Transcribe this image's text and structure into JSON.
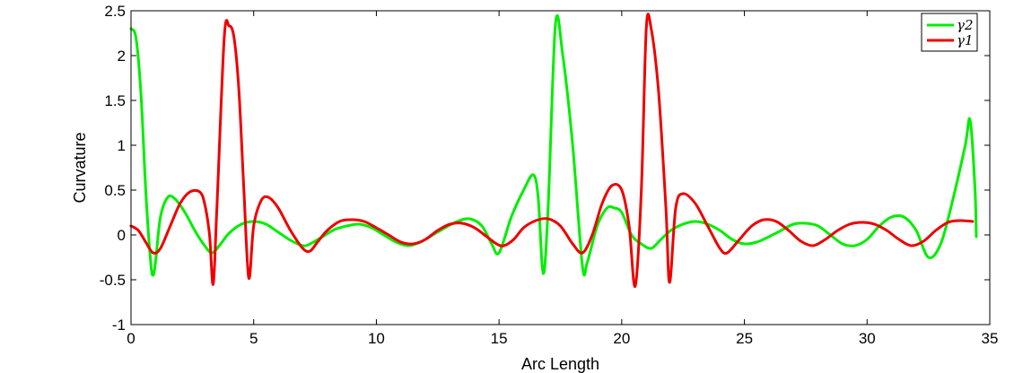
{
  "chart_data": {
    "type": "line",
    "title": "",
    "xlabel": "Arc Length",
    "ylabel": "Curvature",
    "xlim": [
      0,
      35
    ],
    "ylim": [
      -1,
      2.5
    ],
    "grid": false,
    "legend_placement": "top-right",
    "x_ticks": [
      "0",
      "5",
      "10",
      "15",
      "20",
      "25",
      "30",
      "35"
    ],
    "y_ticks": [
      "-1",
      "-0.5",
      "0",
      "0.5",
      "1",
      "1.5",
      "2",
      "2.5"
    ],
    "series": [
      {
        "name": "γ2",
        "color": "#00ee00",
        "x": [
          0.0,
          0.2,
          0.4,
          0.6,
          0.8,
          0.9,
          1.0,
          1.2,
          1.5,
          1.8,
          2.2,
          2.6,
          3.0,
          3.3,
          3.6,
          4.0,
          4.5,
          5.0,
          5.5,
          6.0,
          6.5,
          7.0,
          7.3,
          7.8,
          8.3,
          8.8,
          9.3,
          9.8,
          10.3,
          10.8,
          11.3,
          11.8,
          12.3,
          12.8,
          13.3,
          13.8,
          14.3,
          14.7,
          15.0,
          15.5,
          16.0,
          16.4,
          16.6,
          16.8,
          17.0,
          17.3,
          17.6,
          18.0,
          18.4,
          18.6,
          19.0,
          19.4,
          19.7,
          20.0,
          20.4,
          20.8,
          21.2,
          21.6,
          22.0,
          22.5,
          23.0,
          23.5,
          24.0,
          24.5,
          25.0,
          25.5,
          26.0,
          26.5,
          27.0,
          27.5,
          28.0,
          28.5,
          29.0,
          29.5,
          30.0,
          30.5,
          31.0,
          31.5,
          32.0,
          32.5,
          33.0,
          33.5,
          34.0,
          34.2,
          34.4,
          34.45
        ],
        "y": [
          2.3,
          2.2,
          1.6,
          0.5,
          -0.3,
          -0.45,
          -0.3,
          0.2,
          0.42,
          0.4,
          0.25,
          0.05,
          -0.12,
          -0.2,
          -0.12,
          0.02,
          0.12,
          0.15,
          0.12,
          0.03,
          -0.06,
          -0.12,
          -0.1,
          -0.02,
          0.06,
          0.1,
          0.12,
          0.08,
          0.0,
          -0.08,
          -0.12,
          -0.08,
          0.0,
          0.08,
          0.15,
          0.18,
          0.1,
          -0.1,
          -0.2,
          0.2,
          0.5,
          0.67,
          0.4,
          -0.43,
          0.3,
          2.35,
          2.0,
          1.0,
          -0.35,
          -0.3,
          0.1,
          0.3,
          0.3,
          0.25,
          0.0,
          -0.1,
          -0.15,
          -0.05,
          0.05,
          0.12,
          0.15,
          0.12,
          0.05,
          -0.05,
          -0.1,
          -0.08,
          -0.02,
          0.05,
          0.12,
          0.13,
          0.1,
          0.0,
          -0.1,
          -0.12,
          -0.05,
          0.1,
          0.2,
          0.2,
          0.05,
          -0.25,
          -0.1,
          0.4,
          1.0,
          1.28,
          0.5,
          -0.02
        ]
      },
      {
        "name": "γ1",
        "color": "#ee0000",
        "x": [
          0.0,
          0.3,
          0.6,
          0.9,
          1.2,
          1.6,
          2.0,
          2.4,
          2.8,
          3.0,
          3.2,
          3.35,
          3.5,
          3.8,
          4.0,
          4.2,
          4.4,
          4.6,
          4.8,
          5.0,
          5.3,
          5.6,
          6.0,
          6.5,
          7.0,
          7.3,
          7.6,
          8.0,
          8.5,
          9.0,
          9.5,
          10.0,
          10.5,
          11.0,
          11.5,
          12.0,
          12.5,
          13.0,
          13.5,
          14.0,
          14.5,
          14.9,
          15.2,
          15.6,
          16.0,
          16.5,
          17.0,
          17.5,
          18.0,
          18.4,
          18.8,
          19.2,
          19.6,
          20.0,
          20.3,
          20.55,
          20.8,
          21.0,
          21.2,
          21.5,
          21.8,
          21.95,
          22.2,
          22.5,
          23.0,
          23.5,
          24.0,
          24.3,
          24.8,
          25.3,
          25.8,
          26.3,
          26.8,
          27.3,
          27.8,
          28.3,
          28.8,
          29.3,
          29.8,
          30.3,
          30.8,
          31.3,
          31.8,
          32.3,
          32.8,
          33.3,
          33.8,
          34.3
        ],
        "y": [
          0.1,
          0.05,
          -0.08,
          -0.2,
          -0.15,
          0.1,
          0.35,
          0.48,
          0.48,
          0.35,
          0.0,
          -0.55,
          0.3,
          2.2,
          2.33,
          2.2,
          1.6,
          0.5,
          -0.48,
          0.1,
          0.38,
          0.42,
          0.3,
          0.05,
          -0.15,
          -0.18,
          -0.08,
          0.05,
          0.15,
          0.17,
          0.15,
          0.08,
          0.0,
          -0.08,
          -0.1,
          -0.05,
          0.05,
          0.12,
          0.13,
          0.08,
          -0.02,
          -0.1,
          -0.12,
          -0.05,
          0.08,
          0.16,
          0.18,
          0.1,
          -0.1,
          -0.2,
          0.0,
          0.35,
          0.55,
          0.5,
          0.1,
          -0.57,
          0.5,
          2.3,
          2.3,
          1.6,
          0.3,
          -0.53,
          0.3,
          0.46,
          0.35,
          0.1,
          -0.15,
          -0.2,
          -0.05,
          0.1,
          0.17,
          0.15,
          0.05,
          -0.07,
          -0.12,
          -0.05,
          0.05,
          0.12,
          0.14,
          0.12,
          0.05,
          -0.05,
          -0.12,
          -0.07,
          0.05,
          0.14,
          0.16,
          0.15
        ]
      }
    ]
  }
}
